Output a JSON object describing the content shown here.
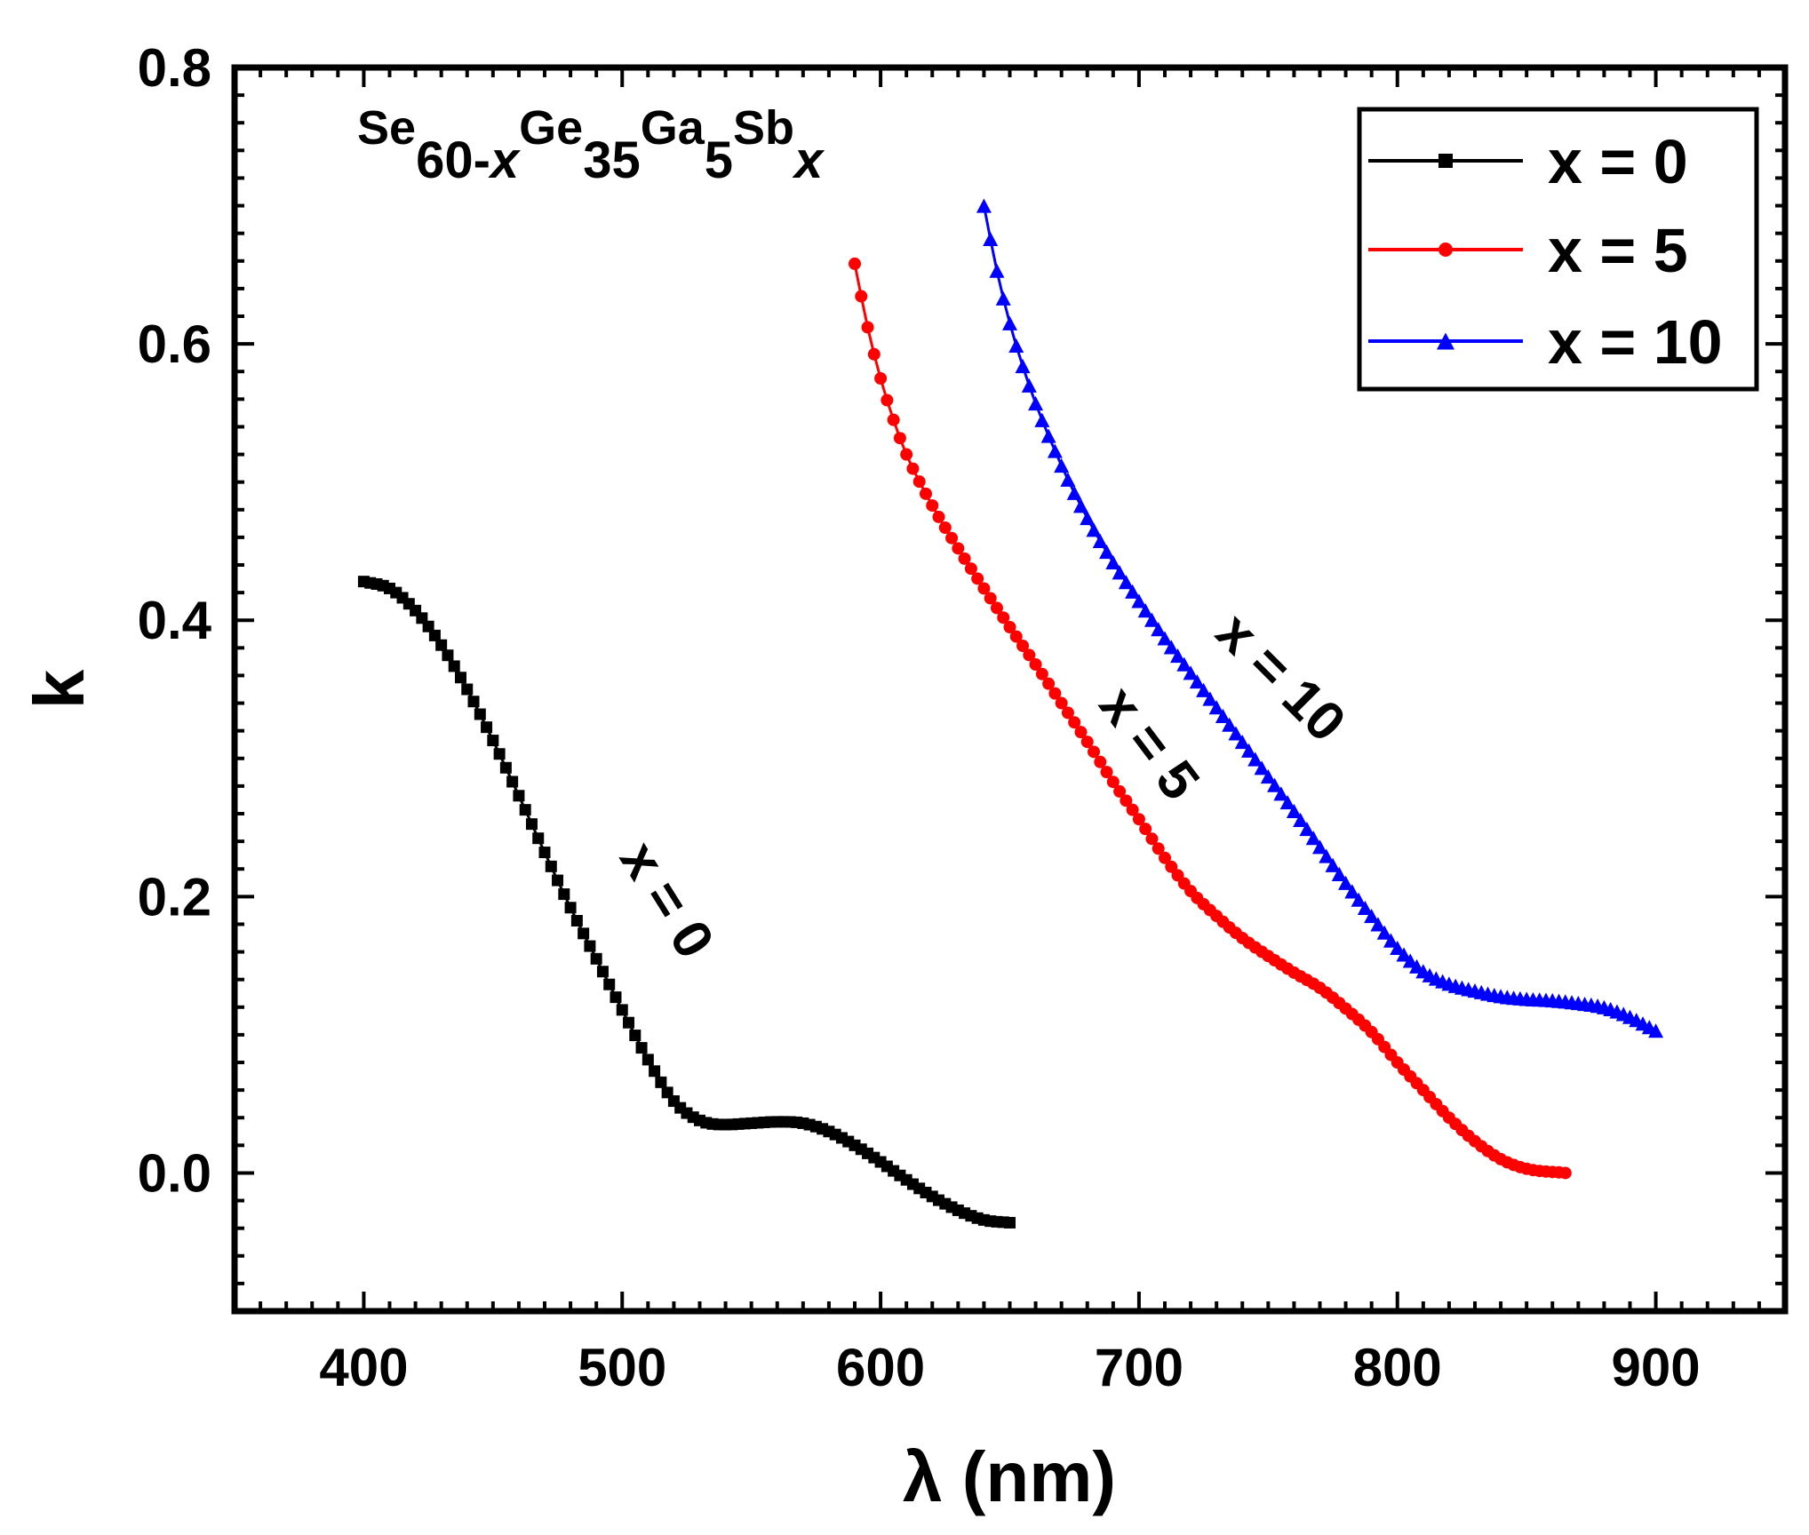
{
  "chart_data": {
    "type": "scatter",
    "title": "",
    "xlabel": "λ (nm)",
    "ylabel": "k",
    "xlim": [
      350,
      950
    ],
    "ylim": [
      -0.1,
      0.8
    ],
    "xticks": [
      400,
      500,
      600,
      700,
      800,
      900
    ],
    "xtick_labels": [
      "400",
      "500",
      "600",
      "700",
      "800",
      "900"
    ],
    "yticks": [
      0.0,
      0.2,
      0.4,
      0.6,
      0.8
    ],
    "ytick_labels": [
      "0.0",
      "0.2",
      "0.4",
      "0.6",
      "0.8"
    ],
    "grid": false,
    "legend_position": "top-right",
    "formula": {
      "parts": [
        {
          "text": "Se",
          "style": "normal"
        },
        {
          "text": "60-",
          "style": "sub"
        },
        {
          "text": "x",
          "style": "sub-italic"
        },
        {
          "text": "Ge",
          "style": "normal"
        },
        {
          "text": "35",
          "style": "sub"
        },
        {
          "text": "Ga",
          "style": "normal"
        },
        {
          "text": "5",
          "style": "sub"
        },
        {
          "text": "Sb",
          "style": "normal"
        },
        {
          "text": "x",
          "style": "sub-italic"
        }
      ]
    },
    "series": [
      {
        "name": "x = 0",
        "color": "#000000",
        "marker": "square",
        "annotation": "x = 0",
        "x": [
          400,
          410,
          420,
          430,
          440,
          450,
          460,
          470,
          480,
          490,
          500,
          510,
          520,
          530,
          540,
          550,
          560,
          570,
          580,
          590,
          600,
          610,
          620,
          630,
          640,
          650
        ],
        "y": [
          0.428,
          0.423,
          0.407,
          0.382,
          0.35,
          0.313,
          0.273,
          0.232,
          0.192,
          0.155,
          0.118,
          0.082,
          0.052,
          0.038,
          0.035,
          0.036,
          0.037,
          0.036,
          0.03,
          0.02,
          0.008,
          -0.005,
          -0.017,
          -0.027,
          -0.034,
          -0.036
        ]
      },
      {
        "name": "x = 5",
        "color": "#ff0000",
        "marker": "circle",
        "annotation": "x = 5",
        "x": [
          590,
          595,
          600,
          605,
          610,
          620,
          630,
          640,
          650,
          660,
          670,
          680,
          690,
          700,
          710,
          720,
          730,
          740,
          750,
          760,
          770,
          780,
          790,
          800,
          810,
          820,
          830,
          840,
          850,
          865
        ],
        "y": [
          0.658,
          0.612,
          0.575,
          0.545,
          0.52,
          0.483,
          0.452,
          0.423,
          0.395,
          0.368,
          0.34,
          0.312,
          0.283,
          0.256,
          0.228,
          0.204,
          0.186,
          0.17,
          0.157,
          0.145,
          0.134,
          0.119,
          0.102,
          0.08,
          0.06,
          0.04,
          0.023,
          0.01,
          0.003,
          0.0
        ]
      },
      {
        "name": "x = 10",
        "color": "#0000ff",
        "marker": "triangle",
        "annotation": "x = 10",
        "x": [
          640,
          645,
          650,
          655,
          660,
          670,
          680,
          690,
          700,
          710,
          720,
          730,
          740,
          750,
          760,
          770,
          780,
          790,
          800,
          810,
          820,
          830,
          840,
          850,
          860,
          870,
          880,
          890,
          900
        ],
        "y": [
          0.7,
          0.653,
          0.615,
          0.584,
          0.557,
          0.512,
          0.474,
          0.442,
          0.414,
          0.387,
          0.362,
          0.337,
          0.312,
          0.287,
          0.262,
          0.236,
          0.21,
          0.186,
          0.163,
          0.146,
          0.137,
          0.132,
          0.128,
          0.126,
          0.125,
          0.123,
          0.12,
          0.113,
          0.103
        ]
      }
    ]
  }
}
